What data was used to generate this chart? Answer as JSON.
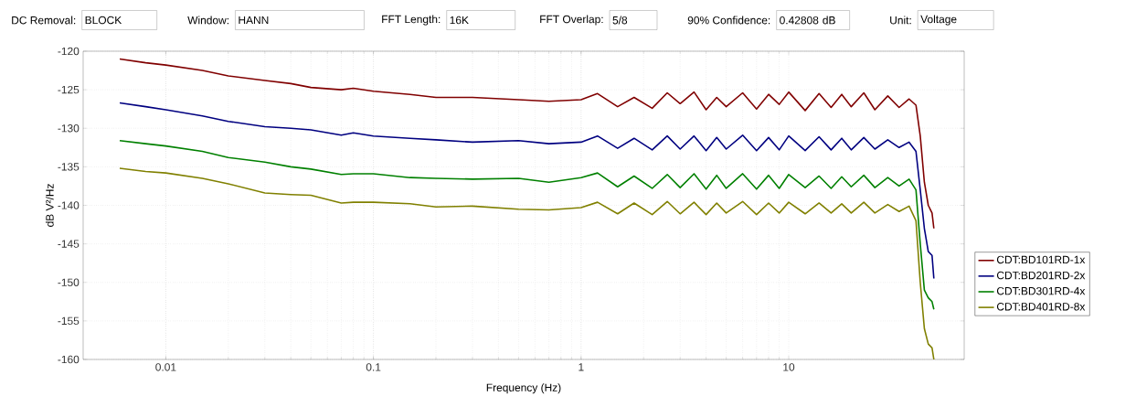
{
  "chart_data": {
    "type": "line",
    "annotations": [
      "DC Removal:",
      "BLOCK",
      "Window:",
      "HANN",
      "FFT Length:",
      "16K",
      "FFT Overlap:",
      "5/8",
      "90% Confidence:",
      "0.42808 dB",
      "Unit:",
      "Voltage"
    ],
    "xlabel": "Frequency (Hz)",
    "ylabel": "dB V²/Hz",
    "log": "x",
    "xlim": [
      0.004,
      70
    ],
    "xticks": [
      0.01,
      0.1,
      1,
      10
    ],
    "ylim": [
      -160,
      -120
    ],
    "yticks": [
      -160,
      -155,
      -150,
      -145,
      -140,
      -135,
      -130,
      -125,
      -120
    ],
    "grid": true,
    "legend": "right",
    "marker": "none",
    "line_style": "solid",
    "x": [
      0.006,
      0.008,
      0.01,
      0.015,
      0.02,
      0.03,
      0.04,
      0.05,
      0.07,
      0.08,
      0.1,
      0.15,
      0.2,
      0.3,
      0.5,
      0.7,
      1,
      1.2,
      1.5,
      1.8,
      2.2,
      2.6,
      3,
      3.5,
      4,
      4.5,
      5,
      6,
      7,
      8,
      9,
      10,
      12,
      14,
      16,
      18,
      20,
      23,
      26,
      30,
      34,
      38,
      41,
      43,
      45,
      47,
      49,
      50
    ],
    "series": [
      {
        "name": "CDT:BD101RD-1x",
        "color": "#800000",
        "values": [
          -121,
          -121.5,
          -121.8,
          -122.5,
          -123.2,
          -123.8,
          -124.2,
          -124.7,
          -125,
          -124.8,
          -125.2,
          -125.6,
          -126,
          -126,
          -126.3,
          -126.5,
          -126.3,
          -125.5,
          -127.2,
          -126,
          -127.4,
          -125.4,
          -126.8,
          -125.3,
          -127.6,
          -126,
          -127.2,
          -125.4,
          -127.5,
          -125.6,
          -126.9,
          -125.3,
          -127.7,
          -125.5,
          -127.3,
          -125.6,
          -127.2,
          -125.4,
          -127.6,
          -125.8,
          -127.3,
          -126.2,
          -127,
          -131,
          -137,
          -140,
          -141,
          -143
        ]
      },
      {
        "name": "CDT:BD201RD-2x",
        "color": "#000080",
        "values": [
          -126.7,
          -127.2,
          -127.6,
          -128.4,
          -129.1,
          -129.8,
          -130,
          -130.2,
          -130.9,
          -130.6,
          -131,
          -131.3,
          -131.5,
          -131.8,
          -131.6,
          -132,
          -131.8,
          -131,
          -132.6,
          -131.3,
          -132.8,
          -131,
          -132.7,
          -131,
          -132.9,
          -131.2,
          -132.7,
          -130.9,
          -132.9,
          -131.2,
          -132.8,
          -131,
          -132.9,
          -131.1,
          -132.8,
          -131.3,
          -132.8,
          -131.2,
          -132.7,
          -131.5,
          -132.5,
          -131.8,
          -133,
          -138,
          -143,
          -146,
          -146.5,
          -149.5
        ]
      },
      {
        "name": "CDT:BD301RD-4x",
        "color": "#008000",
        "values": [
          -131.6,
          -132,
          -132.3,
          -133,
          -133.8,
          -134.4,
          -135,
          -135.3,
          -136,
          -135.9,
          -135.9,
          -136.4,
          -136.5,
          -136.6,
          -136.5,
          -137,
          -136.4,
          -135.8,
          -137.6,
          -136.2,
          -137.8,
          -136,
          -137.7,
          -135.9,
          -137.9,
          -136.1,
          -137.8,
          -135.9,
          -137.9,
          -136.1,
          -137.8,
          -136,
          -137.7,
          -136.2,
          -137.8,
          -136.3,
          -137.6,
          -136.1,
          -137.7,
          -136.4,
          -137.5,
          -136.6,
          -138,
          -145,
          -151,
          -152,
          -152.5,
          -153.5
        ]
      },
      {
        "name": "CDT:BD401RD-8x",
        "color": "#808000",
        "values": [
          -135.2,
          -135.6,
          -135.8,
          -136.5,
          -137.2,
          -138.4,
          -138.6,
          -138.7,
          -139.7,
          -139.6,
          -139.6,
          -139.8,
          -140.2,
          -140.1,
          -140.5,
          -140.6,
          -140.3,
          -139.6,
          -141.1,
          -139.7,
          -141.2,
          -139.5,
          -141.1,
          -139.6,
          -141.2,
          -139.7,
          -141,
          -139.5,
          -141.2,
          -139.7,
          -141,
          -139.6,
          -141.1,
          -139.7,
          -141,
          -139.8,
          -141,
          -139.6,
          -141,
          -139.9,
          -140.8,
          -140.1,
          -142,
          -150,
          -156,
          -158,
          -158.5,
          -160
        ]
      }
    ]
  }
}
